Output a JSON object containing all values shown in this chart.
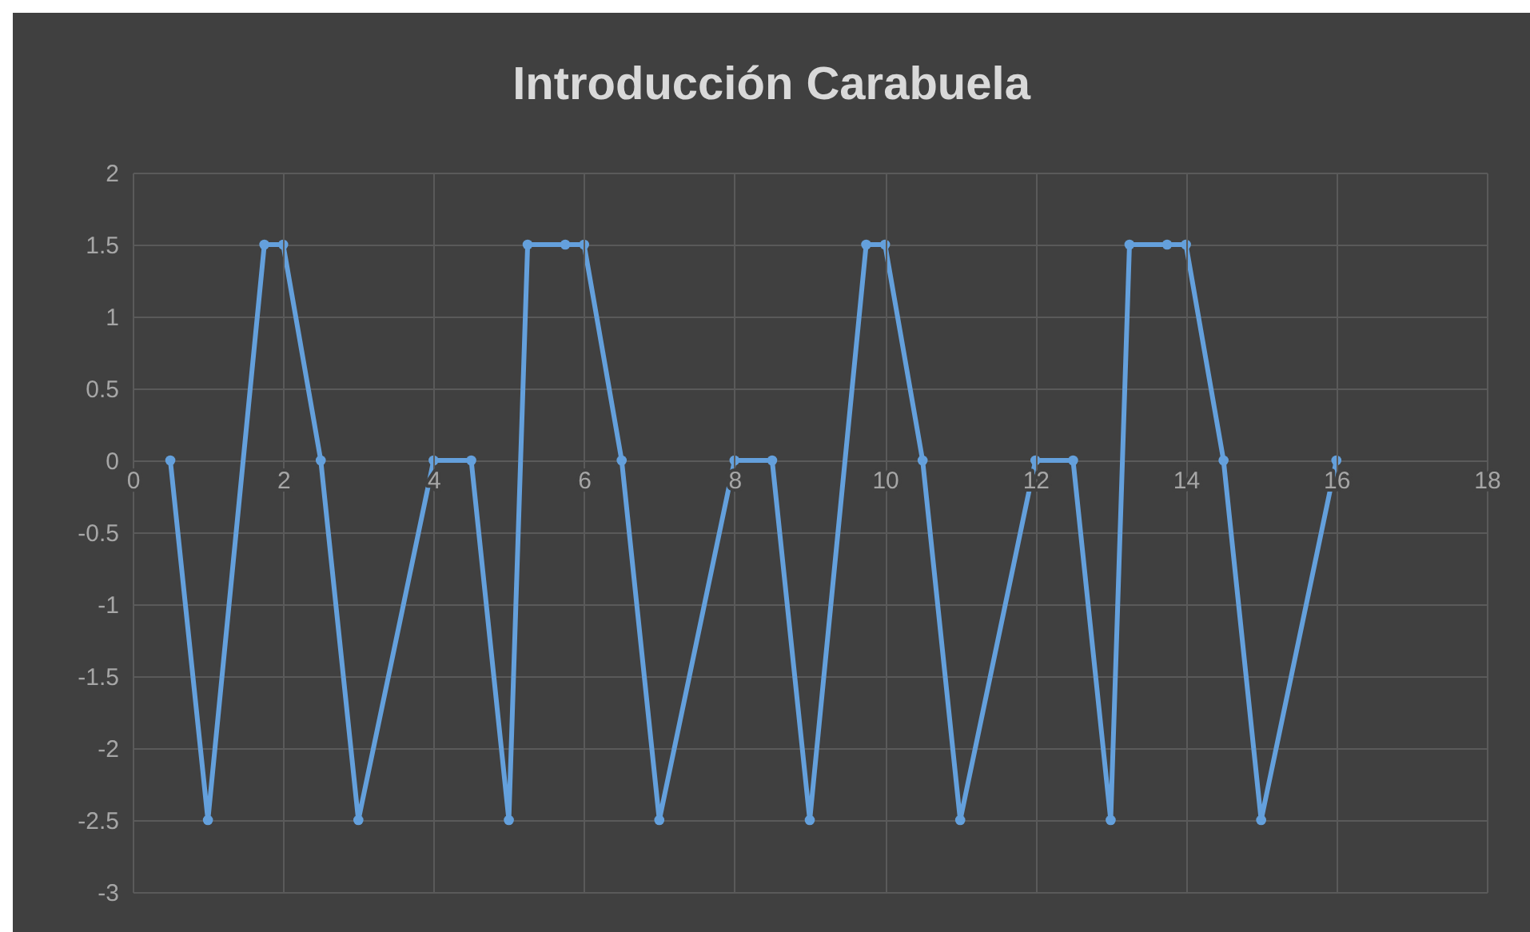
{
  "chart_data": {
    "type": "line",
    "title": "Introducción Carabuela",
    "x": [
      0.5,
      1,
      1.75,
      2,
      2.5,
      3,
      4,
      4.5,
      5,
      5.25,
      5.75,
      6,
      6.5,
      7,
      8,
      8.5,
      9,
      9.75,
      10,
      10.5,
      11,
      12,
      12.5,
      13,
      13.25,
      13.75,
      14,
      14.5,
      15,
      16
    ],
    "series": [
      {
        "color": "#64a0dc",
        "values": [
          0,
          -2.5,
          1.5,
          1.5,
          0,
          -2.5,
          0,
          0,
          -2.5,
          1.5,
          1.5,
          1.5,
          0,
          -2.5,
          0,
          0,
          -2.5,
          1.5,
          1.5,
          0,
          -2.5,
          0,
          0,
          -2.5,
          1.5,
          1.5,
          1.5,
          0,
          -2.5,
          0
        ]
      }
    ],
    "xlim": [
      0,
      18
    ],
    "xticks": [
      0,
      2,
      4,
      6,
      8,
      10,
      12,
      14,
      16,
      18
    ],
    "ylim": [
      -3,
      2
    ],
    "yticks": [
      -3,
      -2.5,
      -2,
      -1.5,
      -1,
      -0.5,
      0,
      0.5,
      1,
      1.5,
      2
    ],
    "grid": true,
    "marker": "circle",
    "line_style": "solid"
  }
}
